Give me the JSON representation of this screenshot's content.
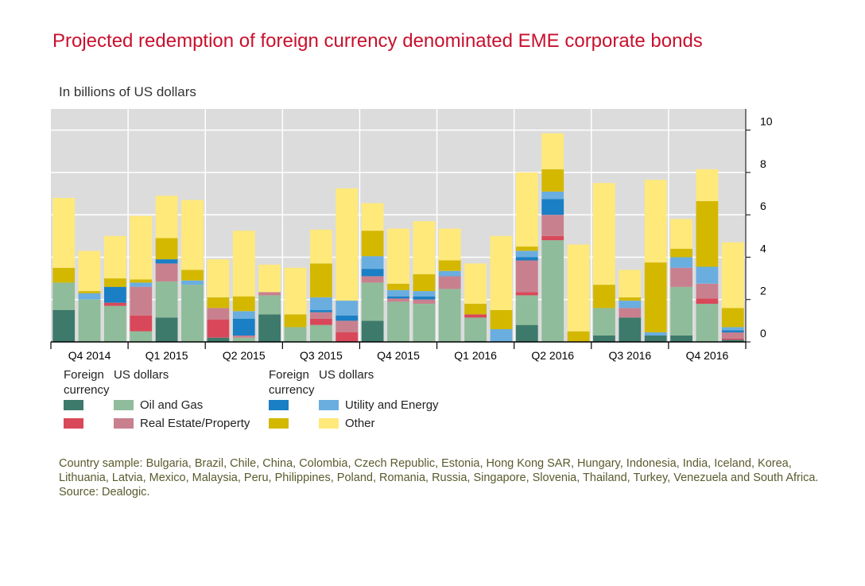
{
  "title": "Projected redemption of foreign currency denominated EME corporate bonds",
  "subtitle": "In billions of US dollars",
  "note": "Country sample: Bulgaria, Brazil, Chile, China, Colombia, Czech Republic, Estonia, Hong Kong SAR, Hungary, Indonesia, India, Iceland, Korea, Lithuania,  Latvia, Mexico, Malaysia, Peru, Philippines, Poland, Romania, Russia, Singapore, Slovenia, Thailand, Turkey, Venezuela and South Africa.  Source: Dealogic.",
  "legend": {
    "group1_fc": "Foreign",
    "group1_fc2": "currency",
    "group1_usd": "US dollars",
    "group2_fc": "Foreign",
    "group2_fc2": "currency",
    "group2_usd": "US dollars",
    "oil_gas": "Oil and Gas",
    "real_estate": "Real Estate/Property",
    "utility": "Utility and Energy",
    "other": "Other"
  },
  "colors": {
    "oil_fc": "#3d7a6b",
    "oil_usd": "#8fbc9a",
    "re_fc": "#d9485a",
    "re_usd": "#c9808e",
    "ut_fc": "#1a7fc4",
    "ut_usd": "#6aaee0",
    "other_fc": "#d4b800",
    "other_usd": "#ffe97a",
    "plot_bg": "#dcdcdc",
    "grid": "#ffffff"
  },
  "chart_data": {
    "type": "bar",
    "stacked": true,
    "title": "Projected redemption of foreign currency denominated EME corporate bonds",
    "ylabel": "In billions of US dollars",
    "ylim": [
      0,
      11
    ],
    "yticks": [
      0,
      2,
      4,
      6,
      8,
      10
    ],
    "quarters": [
      "Q4 2014",
      "Q1 2015",
      "Q2 2015",
      "Q3 2015",
      "Q4 2015",
      "Q1 2016",
      "Q2 2016",
      "Q3 2016",
      "Q4 2016"
    ],
    "months_per_quarter": 3,
    "series": [
      {
        "name": "Oil and Gas (Foreign currency)",
        "key": "oil_fc",
        "values": [
          1.5,
          0,
          0,
          0,
          1.15,
          0,
          0.2,
          0,
          1.3,
          0,
          0,
          0,
          1.0,
          0,
          0,
          0,
          0.05,
          0,
          0.8,
          0,
          0,
          0.3,
          1.15,
          0.3,
          0.3,
          0,
          0.1
        ]
      },
      {
        "name": "Oil and Gas (US dollars)",
        "key": "oil_usd",
        "values": [
          1.3,
          2.0,
          1.7,
          0.5,
          1.7,
          2.7,
          0,
          0.2,
          0.9,
          0.7,
          0.8,
          0,
          1.8,
          1.9,
          1.8,
          2.5,
          1.1,
          0,
          1.4,
          4.8,
          0,
          1.3,
          0,
          0,
          2.3,
          1.8,
          0
        ]
      },
      {
        "name": "Real Estate/Property (Foreign currency)",
        "key": "re_fc",
        "values": [
          0,
          0,
          0.15,
          0.75,
          0,
          0,
          0.85,
          0,
          0,
          0,
          0.3,
          0.45,
          0,
          0,
          0,
          0,
          0.15,
          0,
          0.15,
          0.2,
          0,
          0,
          0,
          0,
          0,
          0.25,
          0.05
        ]
      },
      {
        "name": "Real Estate/Property (US dollars)",
        "key": "re_usd",
        "values": [
          0,
          0,
          0,
          1.35,
          0.85,
          0,
          0.55,
          0.1,
          0.15,
          0,
          0.3,
          0.55,
          0.3,
          0.15,
          0.2,
          0.6,
          0,
          0,
          1.5,
          1.0,
          0,
          0,
          0.45,
          0,
          0.9,
          0.7,
          0.3
        ]
      },
      {
        "name": "Utility and Energy (Foreign currency)",
        "key": "ut_fc",
        "values": [
          0,
          0,
          0.75,
          0,
          0.2,
          0,
          0,
          0.8,
          0,
          0,
          0.1,
          0.25,
          0.35,
          0.1,
          0.15,
          0,
          0,
          0,
          0.15,
          0.75,
          0,
          0,
          0,
          0,
          0,
          0,
          0.1
        ]
      },
      {
        "name": "Utility and Energy (US dollars)",
        "key": "ut_usd",
        "values": [
          0,
          0.3,
          0,
          0.2,
          0,
          0.2,
          0,
          0.35,
          0,
          0,
          0.6,
          0.7,
          0.6,
          0.3,
          0.25,
          0.25,
          0,
          0.6,
          0.3,
          0.35,
          0,
          0,
          0.35,
          0.15,
          0.5,
          0.8,
          0.15
        ]
      },
      {
        "name": "Other (Foreign currency)",
        "key": "other_fc",
        "values": [
          0.7,
          0.1,
          0.4,
          0.15,
          1.0,
          0.5,
          0.5,
          0.7,
          0,
          0.6,
          1.6,
          0,
          1.2,
          0.3,
          0.8,
          0.5,
          0.5,
          0.9,
          0.2,
          1.05,
          0.5,
          1.1,
          0.15,
          3.3,
          0.4,
          3.1,
          0.9
        ]
      },
      {
        "name": "Other (US dollars)",
        "key": "other_usd",
        "values": [
          3.3,
          1.9,
          2.0,
          3.0,
          2.0,
          3.3,
          1.8,
          3.1,
          1.3,
          2.2,
          1.6,
          5.3,
          1.3,
          2.6,
          2.5,
          1.5,
          1.9,
          3.5,
          3.5,
          1.7,
          4.1,
          4.8,
          1.3,
          3.9,
          1.4,
          1.5,
          3.1
        ]
      }
    ]
  }
}
